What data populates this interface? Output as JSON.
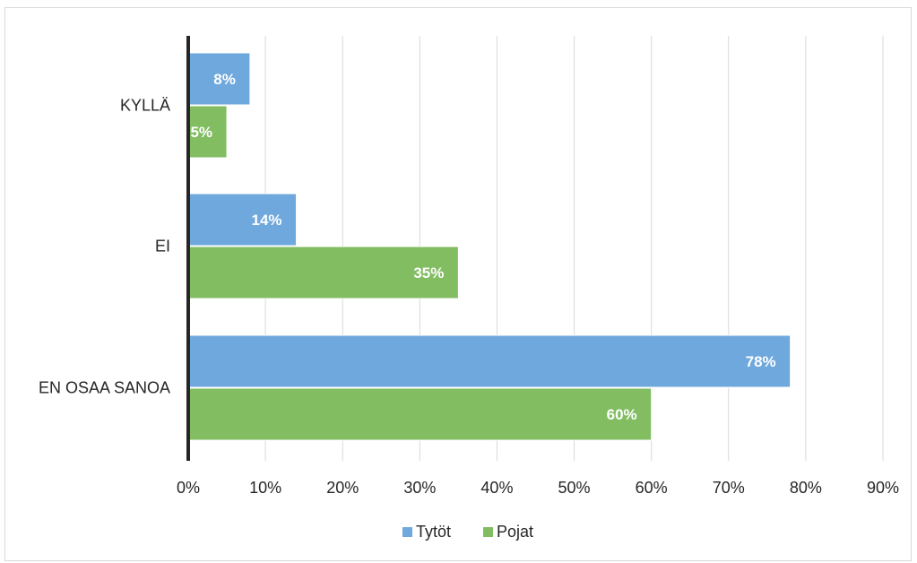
{
  "chart_data": {
    "type": "bar",
    "orientation": "horizontal",
    "categories": [
      "KYLLÄ",
      "EI",
      "EN OSAA SANOA"
    ],
    "series": [
      {
        "name": "Tytöt",
        "color": "#6fa8dc",
        "values": [
          8,
          14,
          78
        ],
        "labels": [
          "8%",
          "14%",
          "78%"
        ]
      },
      {
        "name": "Pojat",
        "color": "#82bd62",
        "values": [
          5,
          35,
          60
        ],
        "labels": [
          "5%",
          "35%",
          "60%"
        ]
      }
    ],
    "xlim": [
      0,
      90
    ],
    "xticks": [
      "0%",
      "10%",
      "20%",
      "30%",
      "40%",
      "50%",
      "60%",
      "70%",
      "80%",
      "90%"
    ],
    "grid": "vertical",
    "legend": "bottom"
  }
}
